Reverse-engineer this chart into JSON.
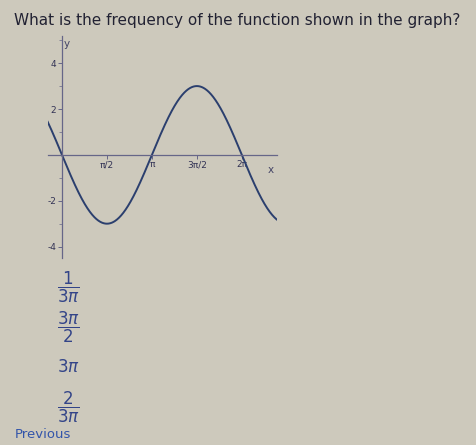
{
  "title": "What is the frequency of the function shown in the graph?",
  "title_fontsize": 11,
  "question_color": "#222233",
  "bg_color": "#cdc9bc",
  "curve_color": "#2b3f6e",
  "amplitude": 3,
  "b": 1.0,
  "phase": 1.5707963267948966,
  "x_min": -0.5,
  "x_max": 7.5,
  "y_min": -4.5,
  "y_max": 5.2,
  "yticks": [
    -4,
    -2,
    2,
    4
  ],
  "xtick_values": [
    1.5707963,
    3.14159265,
    4.71238898,
    6.28318531
  ],
  "xtick_labels": [
    "π/2",
    "π",
    "3π/2",
    "2π"
  ],
  "choice_texts_latex": [
    "\\frac{1}{3\\pi}",
    "\\frac{3\\pi}{2}",
    "3\\pi",
    "\\frac{2}{3\\pi}"
  ],
  "previous_text": "Previous"
}
